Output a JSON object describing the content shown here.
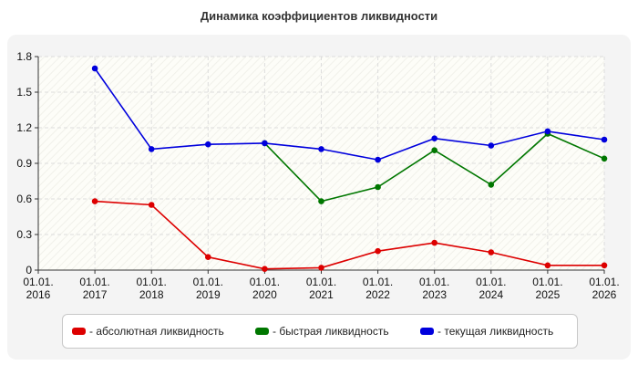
{
  "chart_data": {
    "type": "line",
    "title": "Динамика коэффициентов ликвидности",
    "xlabel": "",
    "ylabel": "",
    "x": [
      "01.01.2016",
      "01.01.2017",
      "01.01.2018",
      "01.01.2019",
      "01.01.2020",
      "01.01.2021",
      "01.01.2022",
      "01.01.2023",
      "01.01.2024",
      "01.01.2025",
      "01.01.2026"
    ],
    "x_tick_labels": [
      [
        "01.01.",
        "2016"
      ],
      [
        "01.01.",
        "2017"
      ],
      [
        "01.01.",
        "2018"
      ],
      [
        "01.01.",
        "2019"
      ],
      [
        "01.01.",
        "2020"
      ],
      [
        "01.01.",
        "2021"
      ],
      [
        "01.01.",
        "2022"
      ],
      [
        "01.01.",
        "2023"
      ],
      [
        "01.01.",
        "2024"
      ],
      [
        "01.01.",
        "2025"
      ],
      [
        "01.01.",
        "2026"
      ]
    ],
    "y_ticks": [
      "0",
      "0.3",
      "0.6",
      "0.9",
      "1.2",
      "1.5",
      "1.8"
    ],
    "ylim": [
      0,
      1.8
    ],
    "grid": true,
    "legend_position": "bottom",
    "series": [
      {
        "name": "- абсолютная ликвидность",
        "color": "#dd0000",
        "values": [
          null,
          0.58,
          0.55,
          0.11,
          0.01,
          0.02,
          0.16,
          0.23,
          0.15,
          0.04,
          0.04
        ]
      },
      {
        "name": "- быстрая ликвидность",
        "color": "#007700",
        "values": [
          null,
          null,
          null,
          null,
          1.07,
          0.58,
          0.7,
          1.01,
          0.72,
          1.15,
          0.94
        ]
      },
      {
        "name": "- текущая ликвидность",
        "color": "#0000dd",
        "values": [
          null,
          1.7,
          1.02,
          1.06,
          1.07,
          1.02,
          0.93,
          1.11,
          1.05,
          1.17,
          1.1
        ]
      }
    ]
  }
}
